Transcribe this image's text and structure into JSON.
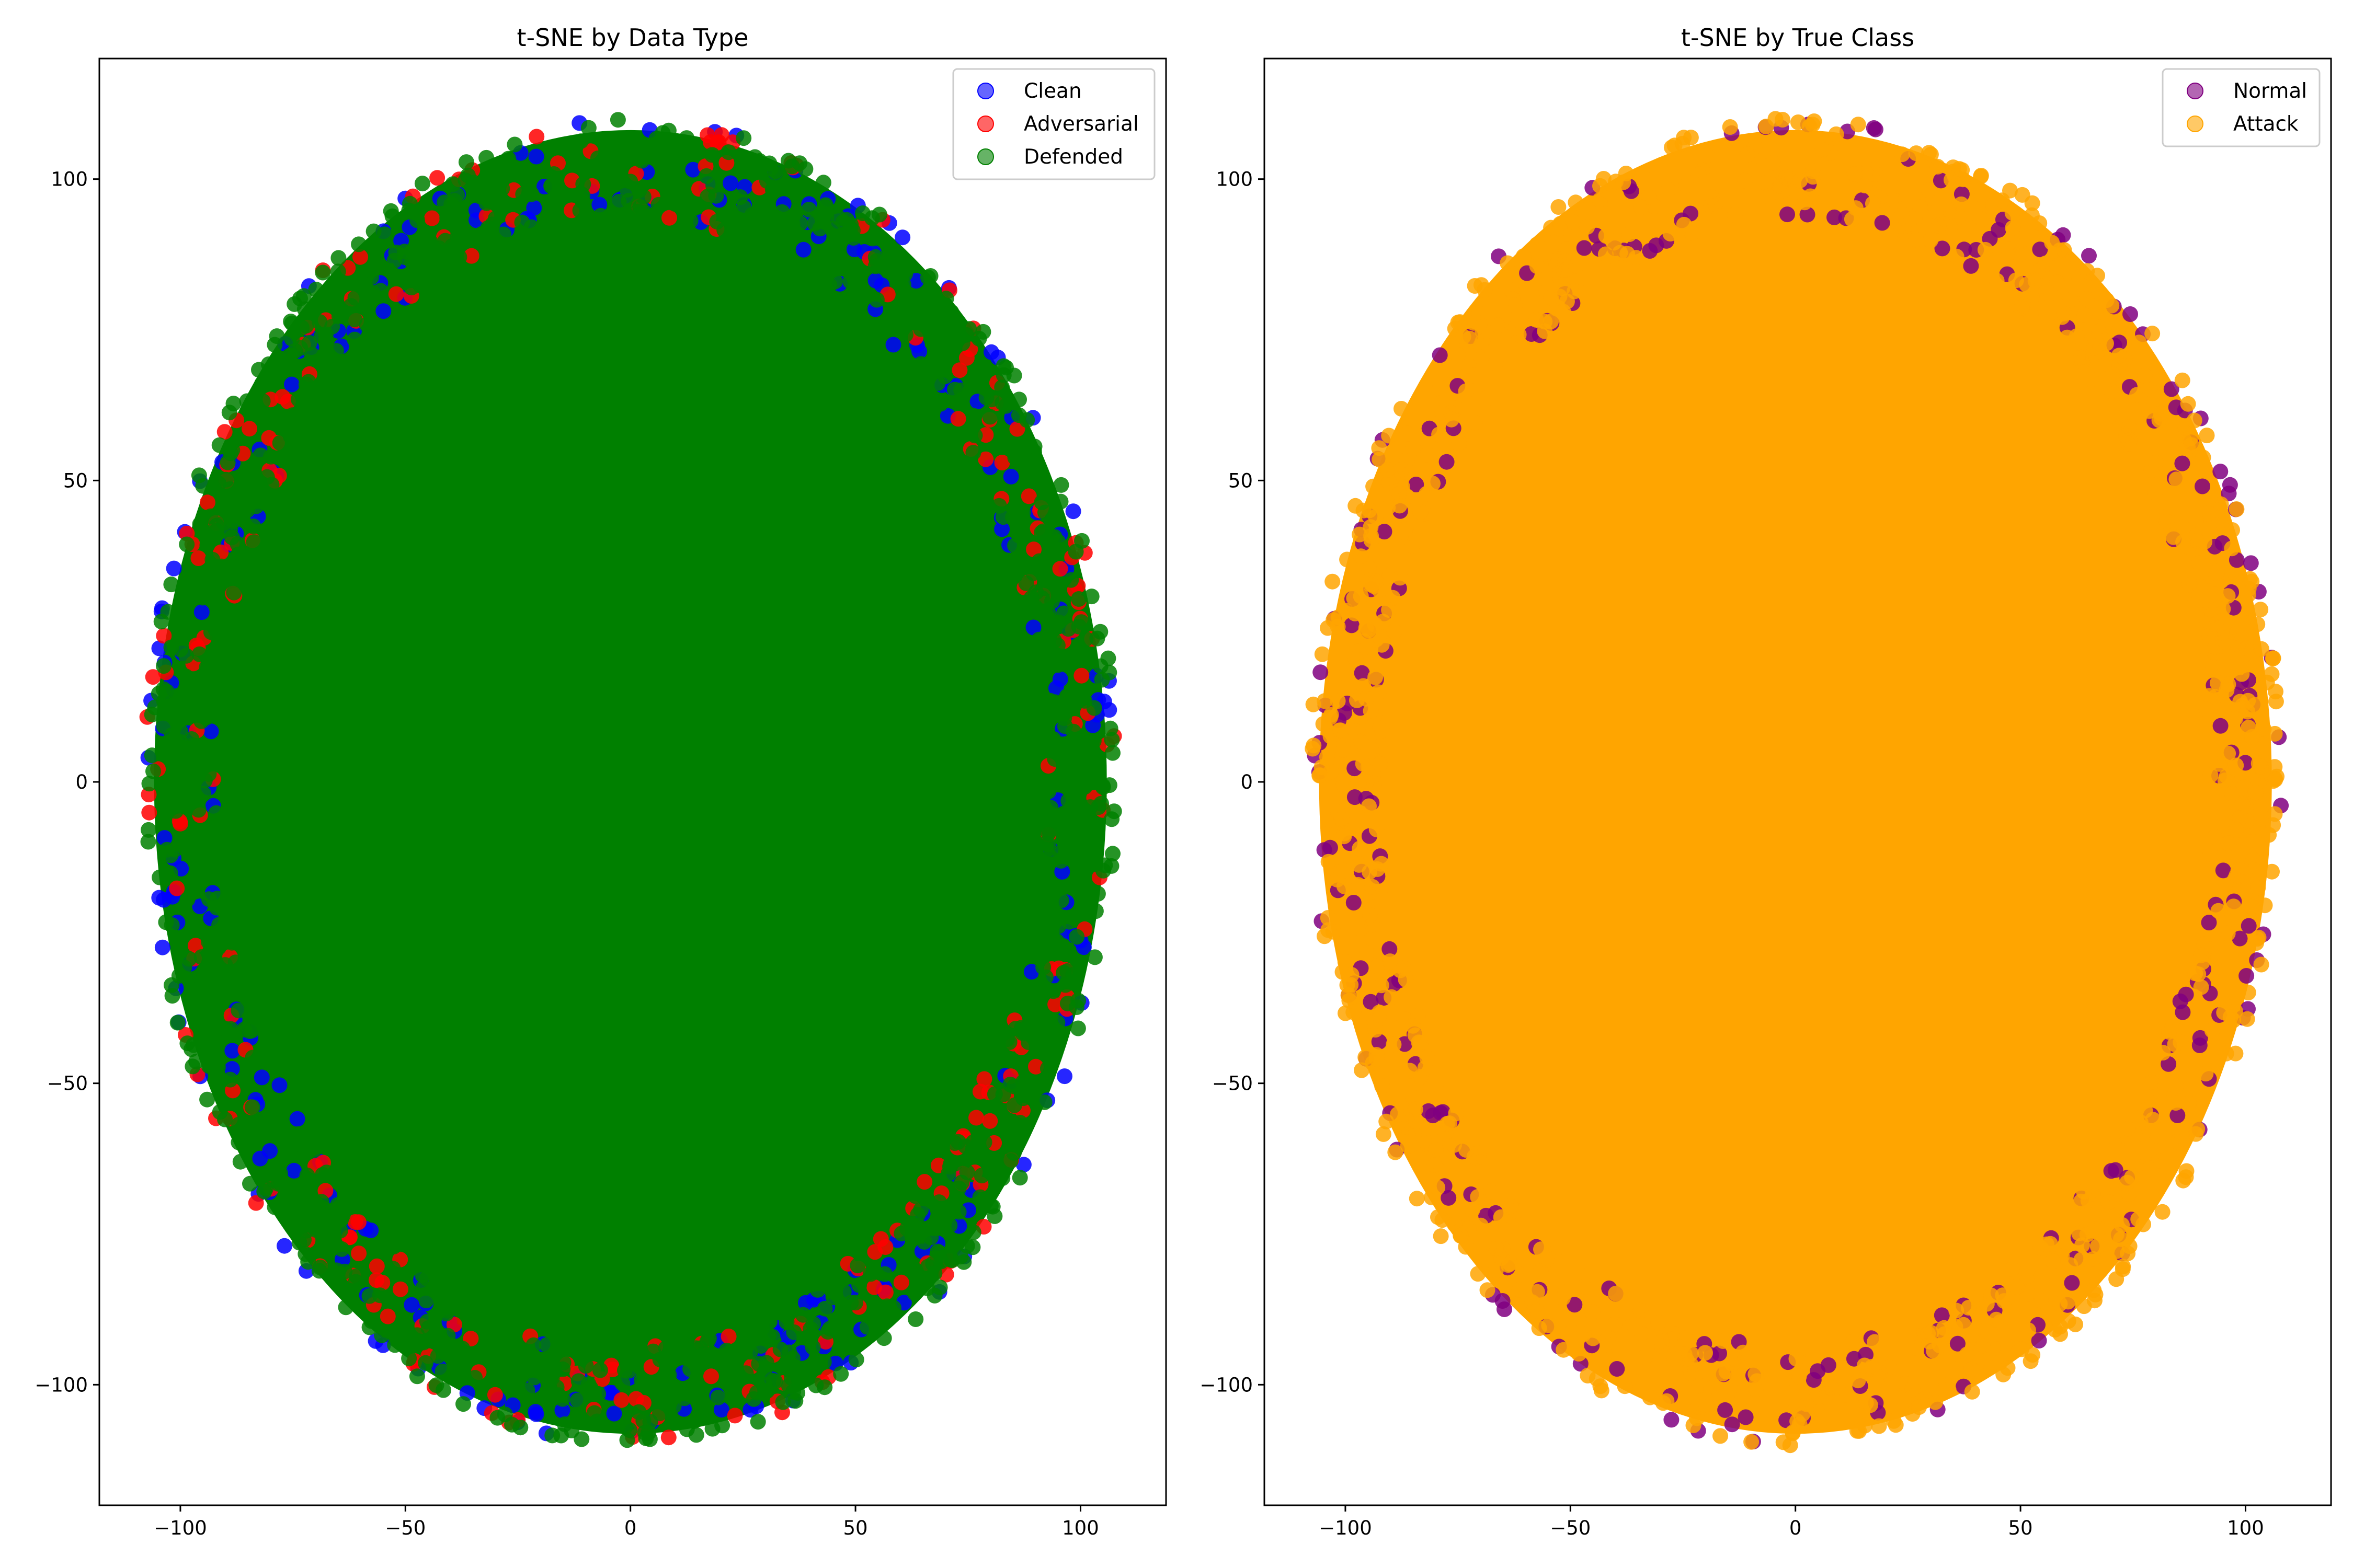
{
  "chart_data": [
    {
      "type": "scatter",
      "title": "t-SNE by Data Type",
      "xlabel": "",
      "ylabel": "",
      "xlim": [
        -118,
        119
      ],
      "ylim": [
        -120,
        120
      ],
      "xticks": [
        -100,
        -50,
        0,
        50,
        100
      ],
      "yticks": [
        -100,
        -50,
        0,
        50,
        100
      ],
      "xtick_labels": [
        "−100",
        "−50",
        "0",
        "50",
        "100"
      ],
      "ytick_labels": [
        "−100",
        "−50",
        "0",
        "50",
        "100"
      ],
      "grid": false,
      "legend_position": "top-right",
      "cloud": {
        "center": [
          0,
          0
        ],
        "x_radius": 107,
        "y_radius": 109
      },
      "series": [
        {
          "name": "Clean",
          "color": "#0000ff",
          "alpha": 0.6
        },
        {
          "name": "Adversarial",
          "color": "#ff0000",
          "alpha": 0.6
        },
        {
          "name": "Defended",
          "color": "#008000",
          "alpha": 0.6
        }
      ]
    },
    {
      "type": "scatter",
      "title": "t-SNE by True Class",
      "xlabel": "",
      "ylabel": "",
      "xlim": [
        -118,
        119
      ],
      "ylim": [
        -120,
        120
      ],
      "xticks": [
        -100,
        -50,
        0,
        50,
        100
      ],
      "yticks": [
        -100,
        -50,
        0,
        50,
        100
      ],
      "xtick_labels": [
        "−100",
        "−50",
        "0",
        "50",
        "100"
      ],
      "ytick_labels": [
        "−100",
        "−50",
        "0",
        "50",
        "100"
      ],
      "grid": false,
      "legend_position": "top-right",
      "cloud": {
        "center": [
          0,
          0
        ],
        "x_radius": 107,
        "y_radius": 109
      },
      "series": [
        {
          "name": "Normal",
          "color": "#800080",
          "alpha": 0.6
        },
        {
          "name": "Attack",
          "color": "#ffa500",
          "alpha": 0.6
        }
      ]
    }
  ]
}
